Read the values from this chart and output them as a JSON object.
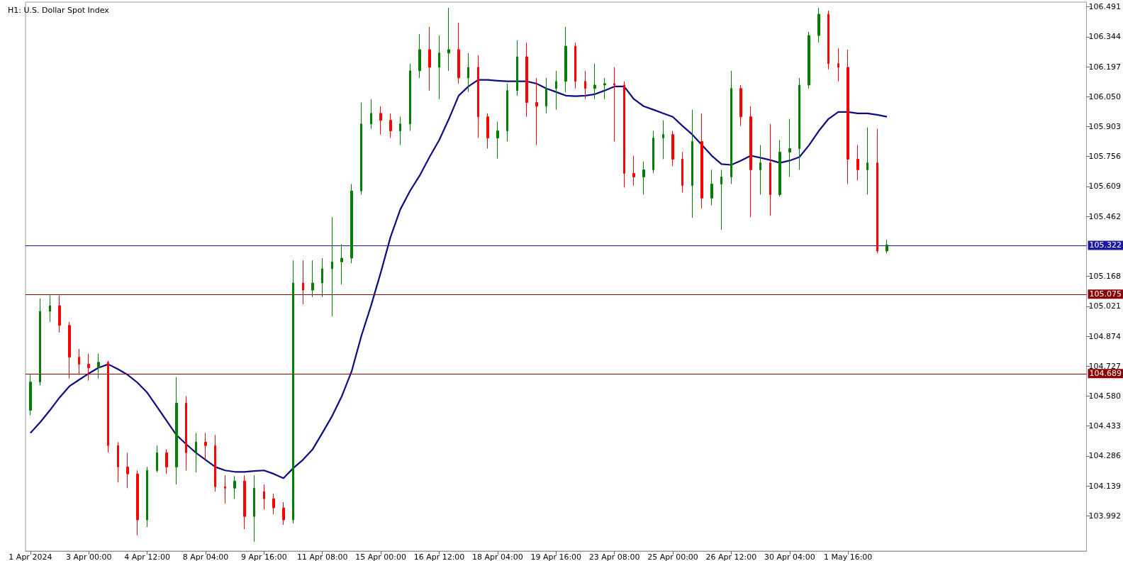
{
  "chart_data": {
    "type": "candlestick",
    "title": "H1: U.S. Dollar Spot Index",
    "marker": "none",
    "categories": [
      "1 Apr 2024",
      null,
      null,
      null,
      null,
      null,
      "3 Apr 00:00",
      null,
      null,
      null,
      null,
      null,
      "4 Apr 12:00",
      null,
      null,
      null,
      null,
      null,
      "8 Apr 04:00",
      null,
      null,
      null,
      null,
      null,
      "9 Apr 16:00",
      null,
      null,
      null,
      null,
      null,
      "11 Apr 08:00",
      null,
      null,
      null,
      null,
      null,
      "15 Apr 00:00",
      null,
      null,
      null,
      null,
      null,
      "16 Apr 12:00",
      null,
      null,
      null,
      null,
      null,
      "18 Apr 04:00",
      null,
      null,
      null,
      null,
      null,
      "19 Apr 16:00",
      null,
      null,
      null,
      null,
      null,
      "23 Apr 08:00",
      null,
      null,
      null,
      null,
      null,
      "25 Apr 00:00",
      null,
      null,
      null,
      null,
      null,
      "26 Apr 12:00",
      null,
      null,
      null,
      null,
      null,
      "30 Apr 04:00",
      null,
      null,
      null,
      null,
      null,
      "1 May 16:00",
      null,
      null,
      null,
      null,
      null,
      null,
      null,
      null,
      null,
      null,
      null,
      null,
      null,
      null,
      null,
      null,
      null,
      null,
      null,
      null,
      null,
      null,
      null,
      null
    ],
    "ylim": [
      103.819,
      106.514
    ],
    "yticks": [
      103.992,
      104.139,
      104.286,
      104.433,
      {
        "value": 104.58,
        "label": "104.580"
      },
      104.727,
      104.874,
      105.021,
      105.168,
      105.462,
      105.609,
      105.756,
      105.903,
      {
        "value": 106.05,
        "label": "106.050"
      },
      106.197,
      106.344,
      106.491
    ],
    "ohlc": [
      [
        104.51,
        104.684,
        104.486,
        104.649
      ],
      [
        104.649,
        105.059,
        104.632,
        104.996
      ],
      [
        104.996,
        105.073,
        104.944,
        105.024
      ],
      [
        105.024,
        105.073,
        104.892,
        104.927
      ],
      [
        104.927,
        104.944,
        104.666,
        104.771
      ],
      [
        104.771,
        104.812,
        104.684,
        104.736
      ],
      [
        104.736,
        104.788,
        104.656,
        104.719
      ],
      [
        104.719,
        104.788,
        104.666,
        104.746
      ],
      [
        104.746,
        104.753,
        104.302,
        104.337
      ],
      [
        104.337,
        104.354,
        104.156,
        104.232
      ],
      [
        104.232,
        104.302,
        104.128,
        104.198
      ],
      [
        104.198,
        104.215,
        103.896,
        103.972
      ],
      [
        103.972,
        104.232,
        103.937,
        104.215
      ],
      [
        104.215,
        104.337,
        104.205,
        104.302
      ],
      [
        104.302,
        104.319,
        104.198,
        104.232
      ],
      [
        104.232,
        104.673,
        104.146,
        104.545
      ],
      [
        104.545,
        104.58,
        104.215,
        104.302
      ],
      [
        104.302,
        104.399,
        104.205,
        104.354
      ],
      [
        104.354,
        104.399,
        104.267,
        104.337
      ],
      [
        104.337,
        104.389,
        104.111,
        104.135
      ],
      [
        104.135,
        104.191,
        104.052,
        104.128
      ],
      [
        104.128,
        104.187,
        104.076,
        104.163
      ],
      [
        104.163,
        104.191,
        103.927,
        103.989
      ],
      [
        103.989,
        104.191,
        103.864,
        104.128
      ],
      [
        104.111,
        104.146,
        104.024,
        104.076
      ],
      [
        104.076,
        104.101,
        104.0,
        104.031
      ],
      [
        104.031,
        104.059,
        103.948,
        103.972
      ],
      [
        103.972,
        105.246,
        103.955,
        105.135
      ],
      [
        105.135,
        105.246,
        105.031,
        105.1
      ],
      [
        105.1,
        105.246,
        105.066,
        105.135
      ],
      [
        105.135,
        105.257,
        105.066,
        105.205
      ],
      [
        105.205,
        105.458,
        104.972,
        105.239
      ],
      [
        105.239,
        105.326,
        105.128,
        105.257
      ],
      [
        105.257,
        105.621,
        105.232,
        105.587
      ],
      [
        105.587,
        106.021,
        105.569,
        105.916
      ],
      [
        105.916,
        106.038,
        105.892,
        105.968
      ],
      [
        105.968,
        106.003,
        105.864,
        105.934
      ],
      [
        105.934,
        105.968,
        105.847,
        105.882
      ],
      [
        105.882,
        105.951,
        105.812,
        105.916
      ],
      [
        105.916,
        106.212,
        105.882,
        106.177
      ],
      [
        106.177,
        106.357,
        106.142,
        106.281
      ],
      [
        106.281,
        106.392,
        106.08,
        106.194
      ],
      [
        106.194,
        106.35,
        106.038,
        106.264
      ],
      [
        106.264,
        106.486,
        106.177,
        106.281
      ],
      [
        106.281,
        106.413,
        106.114,
        106.142
      ],
      [
        106.142,
        106.264,
        106.073,
        106.194
      ],
      [
        106.194,
        106.253,
        105.847,
        105.951
      ],
      [
        105.951,
        105.968,
        105.795,
        105.847
      ],
      [
        105.847,
        105.927,
        105.746,
        105.882
      ],
      [
        105.882,
        106.114,
        105.83,
        106.08
      ],
      [
        106.08,
        106.326,
        106.055,
        106.246
      ],
      [
        106.246,
        106.316,
        105.951,
        106.021
      ],
      [
        106.021,
        106.142,
        105.812,
        106.003
      ],
      [
        106.003,
        106.142,
        105.968,
        106.09
      ],
      [
        106.09,
        106.177,
        105.986,
        106.125
      ],
      [
        106.125,
        106.392,
        106.073,
        106.298
      ],
      [
        106.298,
        106.316,
        106.09,
        106.125
      ],
      [
        106.125,
        106.177,
        106.038,
        106.09
      ],
      [
        106.09,
        106.212,
        106.038,
        106.107
      ],
      [
        106.107,
        106.142,
        106.038,
        106.114
      ],
      [
        106.114,
        106.194,
        105.83,
        106.107
      ],
      [
        106.107,
        106.125,
        105.604,
        105.673
      ],
      [
        105.673,
        105.76,
        105.614,
        105.656
      ],
      [
        105.656,
        105.732,
        105.569,
        105.691
      ],
      [
        105.691,
        105.882,
        105.673,
        105.847
      ],
      [
        105.847,
        105.934,
        105.743,
        105.864
      ],
      [
        105.864,
        105.882,
        105.708,
        105.743
      ],
      [
        105.743,
        105.778,
        105.58,
        105.614
      ],
      [
        105.614,
        105.986,
        105.455,
        105.83
      ],
      [
        105.83,
        105.968,
        105.5,
        105.552
      ],
      [
        105.552,
        105.691,
        105.517,
        105.621
      ],
      [
        105.621,
        105.691,
        105.396,
        105.656
      ],
      [
        105.656,
        106.177,
        105.621,
        106.09
      ],
      [
        106.09,
        106.107,
        105.906,
        105.951
      ],
      [
        105.951,
        106.003,
        105.458,
        105.691
      ],
      [
        105.691,
        105.812,
        105.569,
        105.725
      ],
      [
        105.725,
        105.916,
        105.465,
        105.569
      ],
      [
        105.569,
        105.837,
        105.559,
        105.778
      ],
      [
        105.778,
        105.941,
        105.656,
        105.795
      ],
      [
        105.795,
        106.142,
        105.691,
        106.107
      ],
      [
        106.107,
        106.368,
        106.09,
        106.35
      ],
      [
        106.35,
        106.486,
        106.316,
        106.455
      ],
      [
        106.455,
        106.472,
        106.184,
        106.212
      ],
      [
        106.212,
        106.288,
        106.125,
        106.194
      ],
      [
        106.194,
        106.281,
        105.621,
        105.743
      ],
      [
        105.743,
        105.812,
        105.639,
        105.691
      ],
      [
        105.691,
        105.899,
        105.569,
        105.725
      ],
      [
        105.725,
        105.892,
        105.281,
        105.292
      ],
      [
        105.292,
        105.347,
        105.281,
        105.322
      ],
      null,
      null,
      null,
      null,
      null,
      null,
      null,
      null,
      null,
      null,
      null,
      null,
      null,
      null,
      null,
      null,
      null,
      null,
      null,
      null
    ],
    "colors": [
      "#008000",
      "#008000",
      "#008000",
      "#ff0000",
      "#ff0000",
      "#ff0000",
      "#ff0000",
      "#008000",
      "#ff0000",
      "#ff0000",
      "#ff0000",
      "#ff0000",
      "#008000",
      "#008000",
      "#ff0000",
      "#008000",
      "#ff0000",
      "#008000",
      "#ff0000",
      "#ff0000",
      "#ff0000",
      "#008000",
      "#ff0000",
      "#008000",
      "#ff0000",
      "#ff0000",
      "#ff0000",
      "#008000",
      "#ff0000",
      "#008000",
      "#008000",
      "#008000",
      "#008000",
      "#008000",
      "#008000",
      "#008000",
      "#ff0000",
      "#ff0000",
      "#008000",
      "#008000",
      "#008000",
      "#ff0000",
      "#008000",
      "#008000",
      "#ff0000",
      "#008000",
      "#ff0000",
      "#ff0000",
      "#008000",
      "#008000",
      "#008000",
      "#ff0000",
      "#ff0000",
      "#008000",
      "#008000",
      "#008000",
      "#ff0000",
      "#ff0000",
      "#008000",
      "#008000",
      "#ff0000",
      "#ff0000",
      "#ff0000",
      "#008000",
      "#008000",
      "#008000",
      "#ff0000",
      "#ff0000",
      "#008000",
      "#ff0000",
      "#008000",
      "#008000",
      "#008000",
      "#ff0000",
      "#ff0000",
      "#008000",
      "#ff0000",
      "#008000",
      "#008000",
      "#008000",
      "#008000",
      "#008000",
      "#ff0000",
      "#ff0000",
      "#ff0000",
      "#ff0000",
      "#008000",
      "#ff0000",
      "#008000",
      null,
      null,
      null,
      null,
      null,
      null,
      null,
      null,
      null,
      null,
      null,
      null,
      null,
      null,
      null,
      null,
      null,
      null,
      null,
      null
    ],
    "series": [
      {
        "type": "line",
        "color": "#0c0c82",
        "values": [
          104.399,
          104.451,
          104.51,
          104.573,
          104.628,
          104.66,
          104.691,
          104.719,
          104.736,
          104.712,
          104.684,
          104.646,
          104.597,
          104.528,
          104.458,
          104.389,
          104.344,
          104.302,
          104.267,
          104.232,
          104.215,
          104.208,
          104.208,
          104.212,
          104.215,
          104.198,
          104.177,
          104.226,
          104.267,
          104.319,
          104.399,
          104.482,
          104.58,
          104.701,
          104.875,
          105.024,
          105.187,
          105.361,
          105.496,
          105.587,
          105.663,
          105.753,
          105.837,
          105.941,
          106.055,
          106.1,
          106.132,
          106.132,
          106.128,
          106.125,
          106.125,
          106.125,
          106.114,
          106.09,
          106.073,
          106.055,
          106.052,
          106.055,
          106.062,
          106.08,
          106.1,
          106.1,
          106.038,
          106.003,
          105.986,
          105.968,
          105.951,
          105.906,
          105.864,
          105.812,
          105.76,
          105.719,
          105.715,
          105.736,
          105.76,
          105.75,
          105.739,
          105.725,
          105.736,
          105.753,
          105.812,
          105.882,
          105.941,
          105.975,
          105.975,
          105.968,
          105.968,
          105.961,
          105.951,
          null,
          null,
          null,
          null,
          null,
          null,
          null,
          null,
          null,
          null,
          null,
          null,
          null,
          null,
          null,
          null,
          null,
          null,
          null,
          null
        ]
      }
    ],
    "ref_lines": [
      {
        "axis": "y",
        "value": 105.322,
        "label": "105.322",
        "color": "#1a1aa0"
      },
      {
        "axis": "y",
        "value": 105.075,
        "label": "105.075",
        "color": "#8b0000"
      },
      {
        "axis": "y",
        "value": 104.689,
        "label": "104.689",
        "color": "#8b0000"
      }
    ]
  }
}
